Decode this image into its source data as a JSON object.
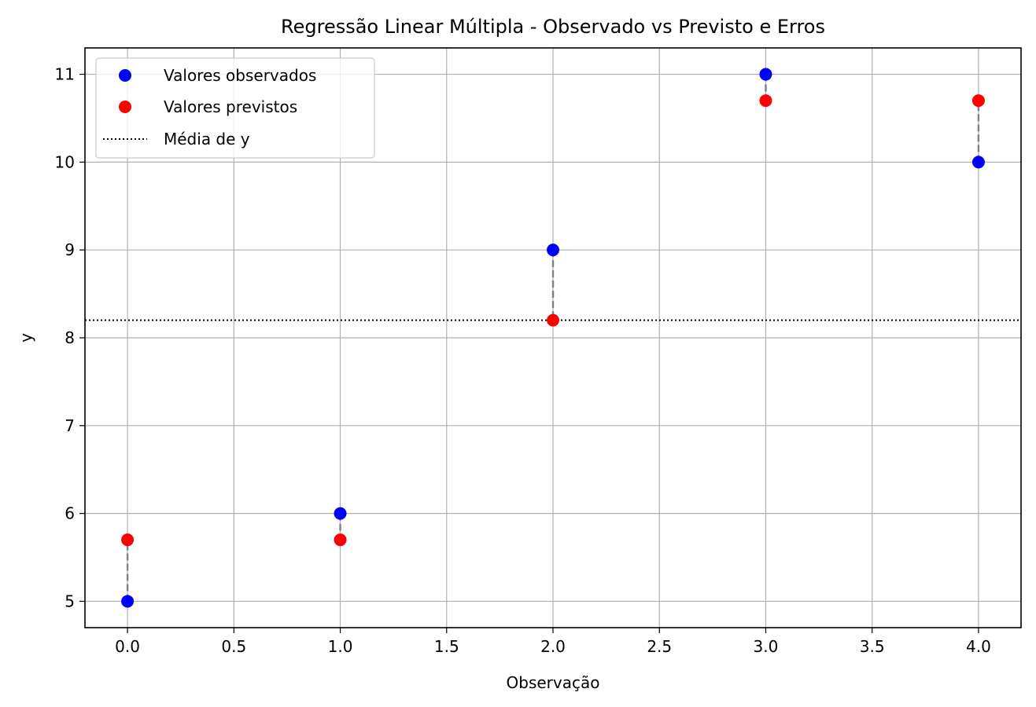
{
  "chart_data": {
    "type": "scatter",
    "title": "Regressão Linear Múltipla - Observado vs Previsto e Erros",
    "xlabel": "Observação",
    "ylabel": "y",
    "xlim": [
      -0.2,
      4.2
    ],
    "ylim": [
      4.7,
      11.3
    ],
    "x_ticks": [
      "0.0",
      "0.5",
      "1.0",
      "1.5",
      "2.0",
      "2.5",
      "3.0",
      "3.5",
      "4.0"
    ],
    "y_ticks": [
      "5",
      "6",
      "7",
      "8",
      "9",
      "10",
      "11"
    ],
    "grid": true,
    "legend_position": "upper-left",
    "x": [
      0,
      1,
      2,
      3,
      4
    ],
    "series": [
      {
        "name": "Valores observados",
        "kind": "scatter",
        "color": "#0000ff",
        "values": [
          5,
          6,
          9,
          11,
          10
        ]
      },
      {
        "name": "Valores previstos",
        "kind": "scatter",
        "color": "#ff0000",
        "values": [
          5.7,
          5.7,
          8.2,
          10.7,
          10.7
        ]
      }
    ],
    "reference_lines": [
      {
        "name": "Média de y",
        "orientation": "horizontal",
        "value": 8.2,
        "style": "dotted",
        "color": "#000000"
      }
    ],
    "error_lines": {
      "style": "dashed",
      "color": "#808080"
    }
  }
}
